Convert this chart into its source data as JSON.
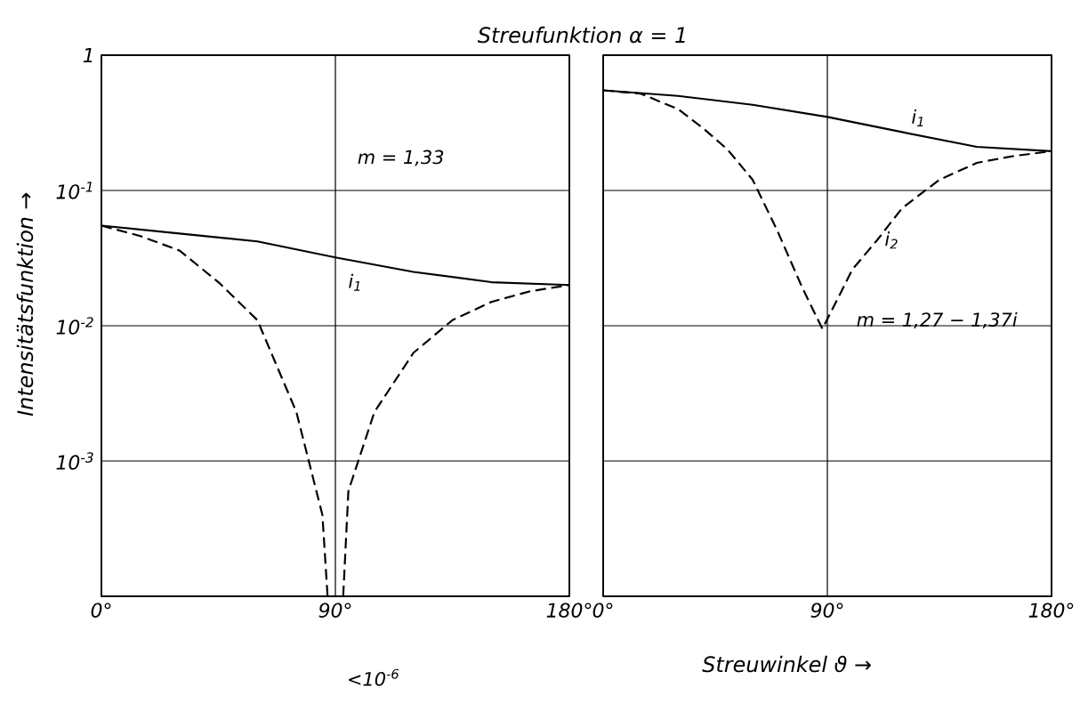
{
  "chart_data": [
    {
      "type": "line",
      "title": "Streufunktion α = 1",
      "ylabel": "Intensitätsfunktion →",
      "log": "y",
      "grid": true,
      "xlim": [
        0,
        180
      ],
      "ylim": [
        0.0001,
        1
      ],
      "xticks": [
        {
          "value": 0,
          "label": "0°"
        },
        {
          "value": 90,
          "label": "90°"
        },
        {
          "value": 180,
          "label": "180°"
        }
      ],
      "yticks": [
        {
          "value": 0.0001,
          "label": null
        },
        {
          "value": 0.001,
          "label": "10$^{-3}$"
        },
        {
          "value": 0.01,
          "label": "10$^{-2}$"
        },
        {
          "value": 0.1,
          "label": "10$^{-1}$"
        },
        {
          "value": 1,
          "label": "1"
        }
      ],
      "annotations": [
        "m = 1,33",
        "<10$^{-6}$"
      ],
      "series": [
        {
          "name": "i$_{1}$",
          "color": "#000000",
          "line_style": "solid",
          "x": [
            0,
            30,
            60,
            90,
            120,
            150,
            180
          ],
          "values": [
            0.055,
            0.048,
            0.042,
            0.032,
            0.025,
            0.021,
            0.02
          ]
        },
        {
          "color": "#000000",
          "line_style": "dashed",
          "x": [
            0,
            15,
            30,
            45,
            60,
            75,
            85,
            87,
            90,
            93,
            95,
            105,
            120,
            135,
            150,
            165,
            180
          ],
          "values": [
            0.055,
            0.046,
            0.036,
            0.021,
            0.011,
            0.0023,
            0.0004,
            0.0001,
            null,
            0.0001,
            0.0006,
            0.0023,
            0.0063,
            0.011,
            0.015,
            0.018,
            0.02
          ]
        }
      ]
    },
    {
      "type": "line",
      "xlabel": "Streuwinkel ϑ →",
      "log": "y",
      "grid": true,
      "tick_labels": "x",
      "xlim": [
        0,
        180
      ],
      "ylim": [
        0.0001,
        1
      ],
      "xticks": [
        {
          "value": 0,
          "label": "0°"
        },
        {
          "value": 90,
          "label": "90°"
        },
        {
          "value": 180,
          "label": "180°"
        }
      ],
      "yticks": [
        {
          "value": 0.0001,
          "label": null
        },
        {
          "value": 0.001,
          "label": null
        },
        {
          "value": 0.01,
          "label": null
        },
        {
          "value": 0.1,
          "label": null
        },
        {
          "value": 1,
          "label": null
        }
      ],
      "annotations": [
        "m = 1,27 − 1,37i"
      ],
      "series": [
        {
          "name": "i$_{1}$",
          "color": "#000000",
          "line_style": "solid",
          "x": [
            0,
            30,
            60,
            90,
            120,
            150,
            180
          ],
          "values": [
            0.55,
            0.5,
            0.43,
            0.35,
            0.27,
            0.21,
            0.195
          ]
        },
        {
          "name": "i$_{2}$",
          "color": "#000000",
          "line_style": "dashed",
          "x": [
            0,
            15,
            30,
            40,
            50,
            60,
            70,
            80,
            88,
            95,
            100,
            110,
            120,
            135,
            150,
            165,
            180
          ],
          "values": [
            0.55,
            0.52,
            0.4,
            0.29,
            0.2,
            0.12,
            0.05,
            0.019,
            0.0095,
            0.017,
            0.026,
            0.043,
            0.074,
            0.12,
            0.16,
            0.18,
            0.195
          ]
        }
      ]
    }
  ]
}
